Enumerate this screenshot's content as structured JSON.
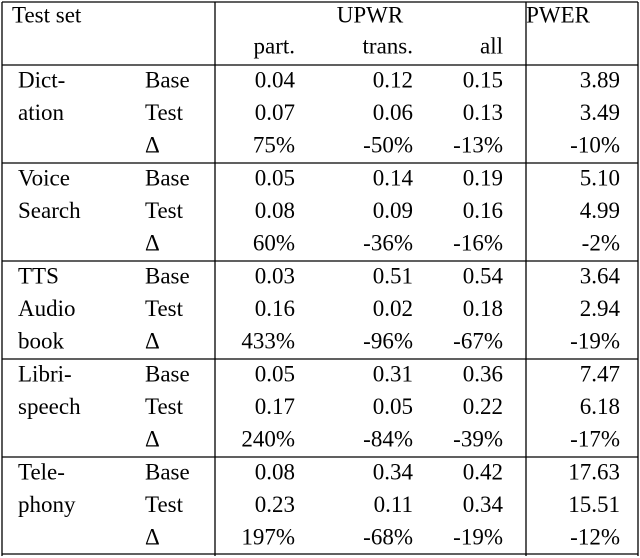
{
  "header": {
    "test_set": "Test set",
    "upwr": "UPWR",
    "pwer": "PWER",
    "subcolumns": [
      "part.",
      "trans.",
      "all"
    ]
  },
  "groups": [
    {
      "name_lines": [
        "Dict-",
        "ation"
      ],
      "rows": [
        [
          "Base",
          "0.04",
          "0.12",
          "0.15",
          "3.89"
        ],
        [
          "Test",
          "0.07",
          "0.06",
          "0.13",
          "3.49"
        ],
        [
          "Δ",
          "75%",
          "-50%",
          "-13%",
          "-10%"
        ]
      ]
    },
    {
      "name_lines": [
        "Voice",
        "Search"
      ],
      "rows": [
        [
          "Base",
          "0.05",
          "0.14",
          "0.19",
          "5.10"
        ],
        [
          "Test",
          "0.08",
          "0.09",
          "0.16",
          "4.99"
        ],
        [
          "Δ",
          "60%",
          "-36%",
          "-16%",
          "-2%"
        ]
      ]
    },
    {
      "name_lines": [
        "TTS",
        "Audio",
        "book"
      ],
      "rows": [
        [
          "Base",
          "0.03",
          "0.51",
          "0.54",
          "3.64"
        ],
        [
          "Test",
          "0.16",
          "0.02",
          "0.18",
          "2.94"
        ],
        [
          "Δ",
          "433%",
          "-96%",
          "-67%",
          "-19%"
        ]
      ]
    },
    {
      "name_lines": [
        "Libri-",
        "speech"
      ],
      "rows": [
        [
          "Base",
          "0.05",
          "0.31",
          "0.36",
          "7.47"
        ],
        [
          "Test",
          "0.17",
          "0.05",
          "0.22",
          "6.18"
        ],
        [
          "Δ",
          "240%",
          "-84%",
          "-39%",
          "-17%"
        ]
      ]
    },
    {
      "name_lines": [
        "Tele-",
        "phony"
      ],
      "rows": [
        [
          "Base",
          "0.08",
          "0.34",
          "0.42",
          "17.63"
        ],
        [
          "Test",
          "0.23",
          "0.11",
          "0.34",
          "15.51"
        ],
        [
          "Δ",
          "197%",
          "-68%",
          "-19%",
          "-12%"
        ]
      ]
    }
  ]
}
